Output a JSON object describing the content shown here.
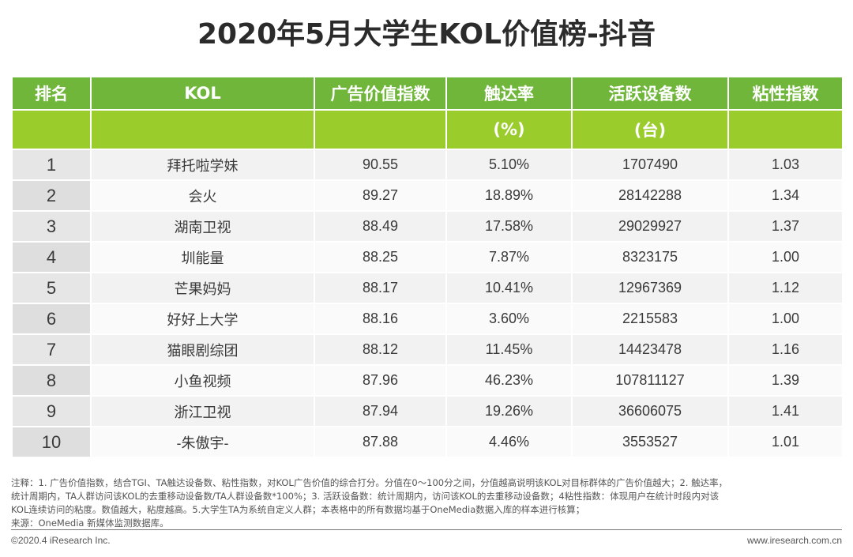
{
  "title": "2020年5月大学生KOL价值榜-抖音",
  "colors": {
    "header_dark": "#6fb63a",
    "header_light": "#9acc2c"
  },
  "table": {
    "headers": [
      "排名",
      "KOL",
      "广告价值指数",
      "触达率",
      "活跃设备数",
      "粘性指数"
    ],
    "subheaders": [
      "",
      "",
      "",
      "(%)",
      "(台)",
      ""
    ],
    "rows": [
      [
        "1",
        "拜托啦学妹",
        "90.55",
        "5.10%",
        "1707490",
        "1.03"
      ],
      [
        "2",
        "会火",
        "89.27",
        "18.89%",
        "28142288",
        "1.34"
      ],
      [
        "3",
        "湖南卫视",
        "88.49",
        "17.58%",
        "29029927",
        "1.37"
      ],
      [
        "4",
        "圳能量",
        "88.25",
        "7.87%",
        "8323175",
        "1.00"
      ],
      [
        "5",
        "芒果妈妈",
        "88.17",
        "10.41%",
        "12967369",
        "1.12"
      ],
      [
        "6",
        "好好上大学",
        "88.16",
        "3.60%",
        "2215583",
        "1.00"
      ],
      [
        "7",
        "猫眼剧综团",
        "88.12",
        "11.45%",
        "14423478",
        "1.16"
      ],
      [
        "8",
        "小鱼视频",
        "87.96",
        "46.23%",
        "107811127",
        "1.39"
      ],
      [
        "9",
        "浙江卫视",
        "87.94",
        "19.26%",
        "36606075",
        "1.41"
      ],
      [
        "10",
        "-朱傲宇-",
        "87.88",
        "4.46%",
        "3553527",
        "1.01"
      ]
    ]
  },
  "notes": [
    "注释：1. 广告价值指数，结合TGI、TA触达设备数、粘性指数，对KOL广告价值的综合打分。分值在0～100分之间，分值越高说明该KOL对目标群体的广告价值越大；2. 触达率，",
    "统计周期内，TA人群访问该KOL的去重移动设备数/TA人群设备数*100%；3. 活跃设备数：统计周期内，访问该KOL的去重移动设备数；4粘性指数：体现用户在统计时段内对该",
    "KOL连续访问的粘度。数值越大，粘度越高。5.大学生TA为系统自定义人群；本表格中的所有数据均基于OneMedia数据入库的样本进行核算；",
    "来源：OneMedia 新媒体监测数据库。"
  ],
  "footer": {
    "copyright": "©2020.4 iResearch Inc.",
    "website": "www.iresearch.com.cn"
  }
}
